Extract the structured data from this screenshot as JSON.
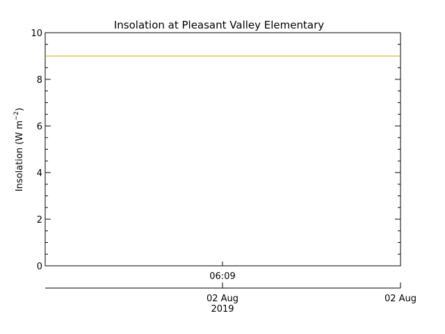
{
  "chart_data": {
    "type": "line",
    "title": "Insolation at Pleasant Valley Elementary",
    "ylabel": "Insolation (W m",
    "ylabel_superscript": "−2",
    "ylabel_close": ")",
    "ylim": [
      0,
      10
    ],
    "y_ticks": [
      0,
      2,
      4,
      6,
      8,
      10
    ],
    "y_tick_labels": [
      "0",
      "2",
      "4",
      "6",
      "8",
      "10"
    ],
    "xaxis_time_label": "06:09",
    "xaxis_date_ticks": [
      {
        "label": "02 Aug",
        "year": "2019"
      },
      {
        "label": "02 Aug",
        "year": ""
      }
    ],
    "series": [
      {
        "color": "#e8a000",
        "values": [
          9,
          9
        ]
      }
    ],
    "grid": false
  }
}
